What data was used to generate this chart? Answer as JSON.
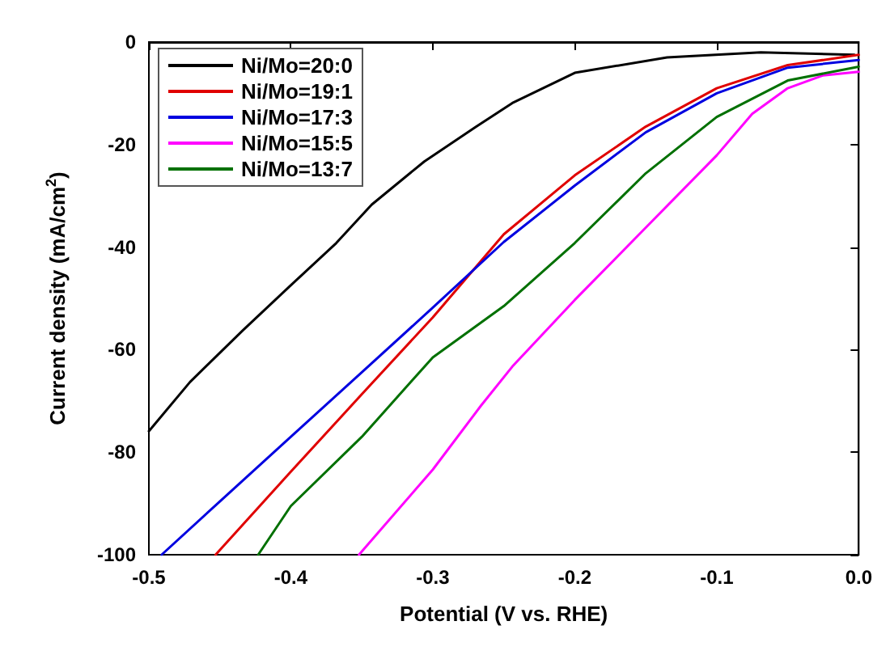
{
  "chart_data": {
    "type": "line",
    "xlabel": "Potential (V vs. RHE)",
    "ylabel": "Current density (mA/cm$^{2}$)",
    "xlim": [
      -0.5,
      0.0
    ],
    "xticks": [
      -0.5,
      -0.4,
      -0.3,
      -0.2,
      -0.1,
      {
        "value": 0,
        "label": "0.0"
      }
    ],
    "ylim": [
      -100,
      0
    ],
    "yticks": [
      -100,
      -80,
      -60,
      -40,
      -20,
      0
    ],
    "grid": false,
    "legend": "top left",
    "marker": "none",
    "line_style": "solid",
    "series": [
      {
        "name": "Ni/Mo=20:0",
        "color": "#000000",
        "x": [
          -0.5,
          -0.471,
          -0.434,
          -0.401,
          -0.368,
          -0.343,
          -0.306,
          -0.27,
          -0.244,
          -0.2,
          -0.135,
          -0.069,
          -0.003
        ],
        "values": [
          -75.9,
          -66.3,
          -56.3,
          -47.7,
          -39.2,
          -31.7,
          -23.3,
          -16.6,
          -11.9,
          -6.0,
          -3.0,
          -2.0,
          -2.5
        ]
      },
      {
        "name": "Ni/Mo=19:1",
        "color": "#e00000",
        "x": [
          -0.453,
          -0.4,
          -0.35,
          -0.3,
          -0.25,
          -0.2,
          -0.15,
          -0.1,
          -0.05,
          0.0
        ],
        "values": [
          -100,
          -83.8,
          -68.7,
          -53.7,
          -37.5,
          -26,
          -16.5,
          -9,
          -4.5,
          -2.5
        ]
      },
      {
        "name": "Ni/Mo=17:3",
        "color": "#0000e0",
        "x": [
          -0.491,
          -0.45,
          -0.4,
          -0.35,
          -0.3,
          -0.25,
          -0.2,
          -0.15,
          -0.1,
          -0.05,
          0.0
        ],
        "values": [
          -100,
          -89.6,
          -77,
          -64.4,
          -51.8,
          -39,
          -28,
          -17.6,
          -10,
          -5,
          -3.5
        ]
      },
      {
        "name": "Ni/Mo=15:5",
        "color": "#ff00ff",
        "x": [
          -0.352,
          -0.3,
          -0.266,
          -0.244,
          -0.2,
          -0.15,
          -0.1,
          -0.075,
          -0.05,
          -0.025,
          0.0
        ],
        "values": [
          -100,
          -83.4,
          -70.9,
          -63.3,
          -50.3,
          -36.2,
          -22.1,
          -14,
          -9,
          -6.5,
          -5.8
        ]
      },
      {
        "name": "Ni/Mo=13:7",
        "color": "#007000",
        "x": [
          -0.423,
          -0.4,
          -0.35,
          -0.3,
          -0.25,
          -0.2,
          -0.15,
          -0.1,
          -0.05,
          0.0
        ],
        "values": [
          -100,
          -90.5,
          -77,
          -61.5,
          -51.5,
          -39.2,
          -25.6,
          -14.6,
          -7.5,
          -4.8
        ]
      }
    ]
  }
}
